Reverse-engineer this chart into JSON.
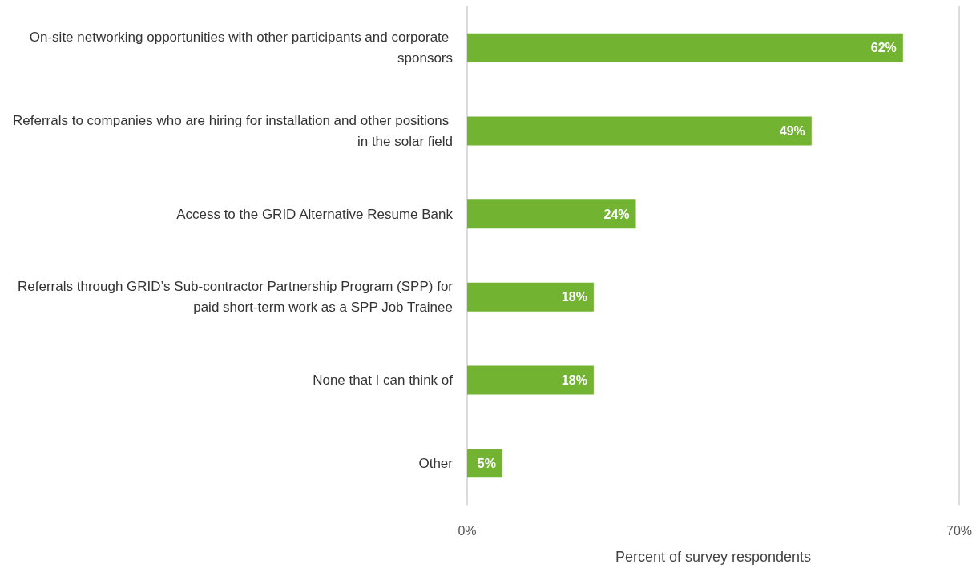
{
  "chart_data": {
    "type": "bar",
    "orientation": "horizontal",
    "categories": [
      "On-site networking opportunities with other participants and corporate sponsors",
      "Referrals to companies who are hiring for installation and other positions in the solar field",
      "Access to the GRID Alternative Resume Bank",
      "Referrals through GRID’s Sub-contractor Partnership Program (SPP) for paid short-term work as a SPP Job Trainee",
      "None that I can think of",
      "Other"
    ],
    "values": [
      62,
      49,
      24,
      18,
      18,
      5
    ],
    "value_labels": [
      "62%",
      "49%",
      "24%",
      "18%",
      "18%",
      "5%"
    ],
    "color": "#72b432",
    "xlabel": "Percent of survey respondents",
    "xlim": [
      0,
      70
    ],
    "xticks": [
      {
        "value": 0,
        "label": "0%"
      },
      {
        "value": 70,
        "label": "70%"
      }
    ],
    "grid": false
  }
}
